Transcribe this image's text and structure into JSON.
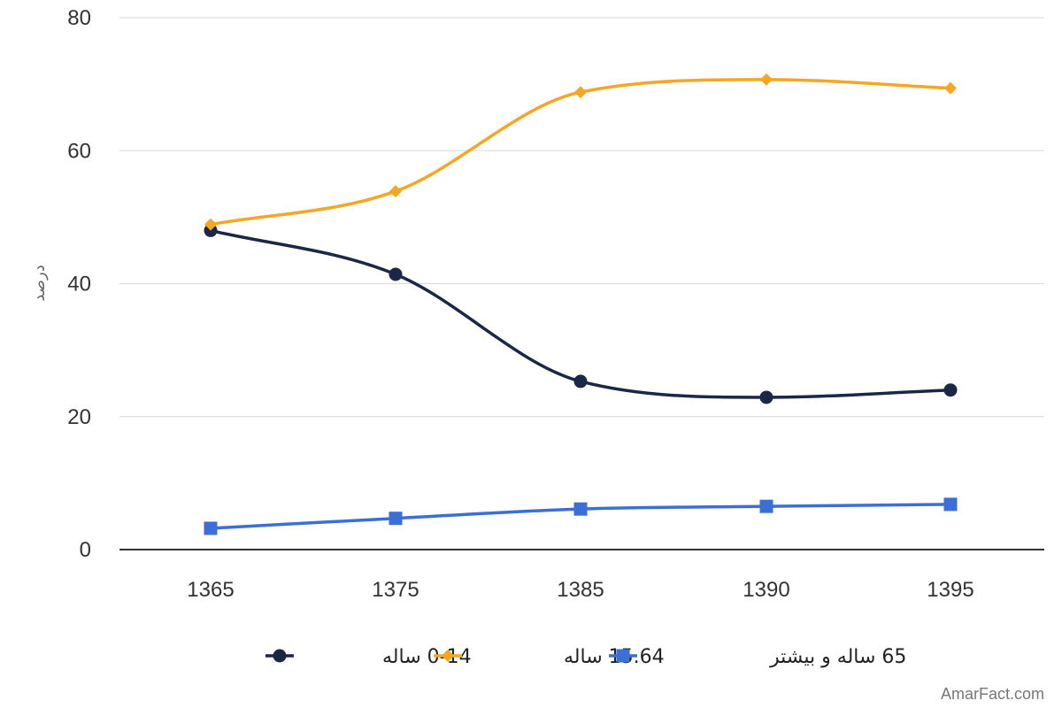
{
  "chart_data": {
    "type": "line",
    "categories": [
      "1365",
      "1375",
      "1385",
      "1390",
      "1395"
    ],
    "series": [
      {
        "name": "0-14 ساله",
        "values": [
          48.0,
          41.4,
          25.3,
          22.9,
          24.0
        ],
        "color": "#1b2747",
        "marker": "circle"
      },
      {
        "name": "15.64 ساله",
        "values": [
          48.9,
          53.9,
          68.8,
          70.7,
          69.4
        ],
        "color": "#f5a623",
        "marker": "diamond"
      },
      {
        "name": "65 ساله و بیشتر",
        "values": [
          3.2,
          4.7,
          6.1,
          6.5,
          6.8
        ],
        "color": "#3b6fd6",
        "marker": "square"
      }
    ],
    "ylim": [
      0,
      80
    ],
    "yticks": [
      0,
      20,
      40,
      60,
      80
    ],
    "ylabel": "درصد",
    "xlabel": "",
    "grid": true,
    "smooth": true,
    "legend_position": "bottom"
  },
  "watermark": "AmarFact.com"
}
